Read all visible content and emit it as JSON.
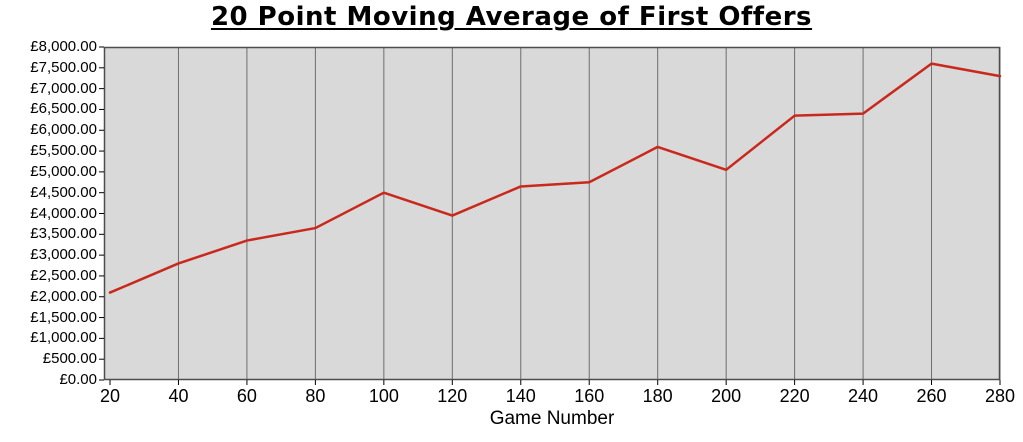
{
  "chart_data": {
    "type": "line",
    "title": "20 Point Moving Average of First Offers",
    "xlabel": "Game Number",
    "ylabel": "",
    "categories": [
      20,
      40,
      60,
      80,
      100,
      120,
      140,
      160,
      180,
      200,
      220,
      240,
      260,
      280
    ],
    "x_tick_labels": [
      "20",
      "40",
      "60",
      "80",
      "100",
      "120",
      "140",
      "160",
      "180",
      "200",
      "220",
      "240",
      "260",
      "280"
    ],
    "values": [
      2100,
      2800,
      3350,
      3650,
      4500,
      3950,
      4650,
      4750,
      5600,
      5050,
      6350,
      6400,
      7600,
      7300
    ],
    "ylim": [
      0,
      8000
    ],
    "y_tick_step": 500,
    "y_tick_labels": [
      "£0.00",
      "£500.00",
      "£1,000.00",
      "£1,500.00",
      "£2,000.00",
      "£2,500.00",
      "£3,000.00",
      "£3,500.00",
      "£4,000.00",
      "£4,500.00",
      "£5,000.00",
      "£5,500.00",
      "£6,000.00",
      "£6,500.00",
      "£7,000.00",
      "£7,500.00",
      "£8,000.00"
    ],
    "grid": "vertical-only",
    "legend": "none",
    "colors": {
      "line": "#c9281c",
      "plot_bg": "#d9d9d9",
      "gridline": "#6e6e6e",
      "border": "#4d4d4d",
      "tick": "#000000",
      "text": "#000000",
      "page_bg": "#ffffff"
    }
  }
}
